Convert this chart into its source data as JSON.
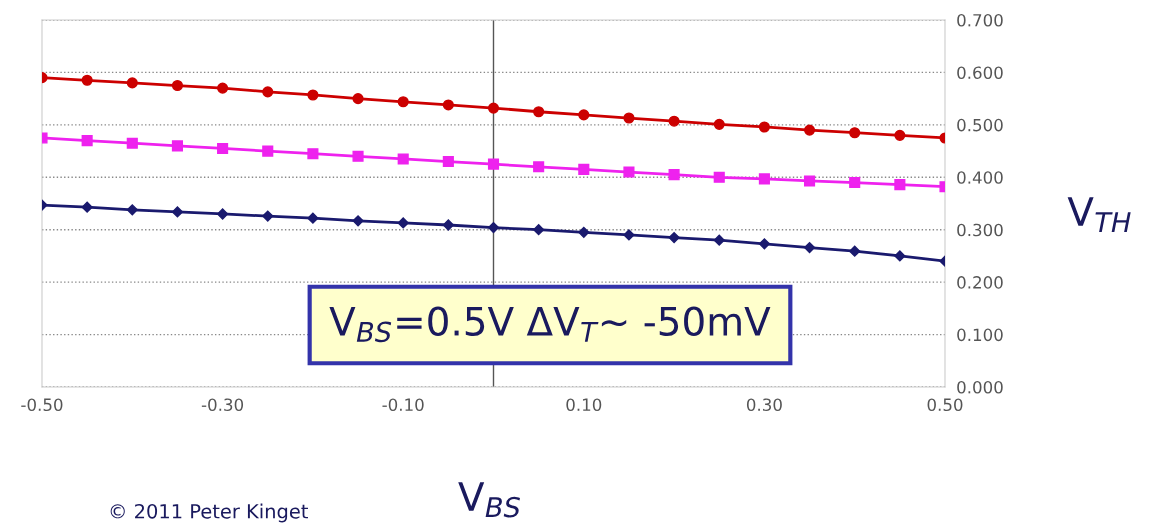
{
  "chart_data": {
    "type": "line",
    "x": [
      -0.5,
      -0.45,
      -0.4,
      -0.35,
      -0.3,
      -0.25,
      -0.2,
      -0.15,
      -0.1,
      -0.05,
      0,
      0.05,
      0.1,
      0.15,
      0.2,
      0.25,
      0.3,
      0.35,
      0.4,
      0.45,
      0.5
    ],
    "series": [
      {
        "color": "#cc0000",
        "marker": "circle",
        "values": [
          0.59,
          0.585,
          0.58,
          0.575,
          0.57,
          0.563,
          0.557,
          0.55,
          0.544,
          0.538,
          0.532,
          0.525,
          0.519,
          0.513,
          0.507,
          0.501,
          0.496,
          0.49,
          0.485,
          0.48,
          0.475
        ]
      },
      {
        "color": "#ee22ee",
        "marker": "square",
        "values": [
          0.475,
          0.47,
          0.465,
          0.46,
          0.455,
          0.45,
          0.445,
          0.44,
          0.435,
          0.43,
          0.425,
          0.42,
          0.415,
          0.41,
          0.405,
          0.4,
          0.397,
          0.393,
          0.39,
          0.386,
          0.382
        ]
      },
      {
        "color": "#1a1a6e",
        "marker": "diamond",
        "values": [
          0.347,
          0.343,
          0.338,
          0.334,
          0.33,
          0.326,
          0.322,
          0.317,
          0.313,
          0.309,
          0.304,
          0.3,
          0.295,
          0.29,
          0.285,
          0.28,
          0.273,
          0.266,
          0.259,
          0.25,
          0.24
        ]
      }
    ],
    "xlim": [
      -0.5,
      0.5
    ],
    "xticks": [
      {
        "value": -0.5,
        "label": "-0.50"
      },
      {
        "value": -0.3,
        "label": "-0.30"
      },
      {
        "value": -0.1,
        "label": "-0.10"
      },
      {
        "value": 0.1,
        "label": "0.10"
      },
      {
        "value": 0.3,
        "label": "0.30"
      },
      {
        "value": 0.5,
        "label": "0.50"
      }
    ],
    "ylim": [
      0,
      0.7
    ],
    "yticks": [
      {
        "value": 0,
        "label": "0.000"
      },
      {
        "value": 0.1,
        "label": "0.100"
      },
      {
        "value": 0.2,
        "label": "0.200"
      },
      {
        "value": 0.3,
        "label": "0.300"
      },
      {
        "value": 0.4,
        "label": "0.400"
      },
      {
        "value": 0.5,
        "label": "0.500"
      },
      {
        "value": 0.6,
        "label": "0.600"
      },
      {
        "value": 0.7,
        "label": "0.700"
      }
    ],
    "ylabel": "V$_{TH}$",
    "xlabel": "V$_{BS}$",
    "grid": "y",
    "ref_lines": [
      {
        "axis": "x",
        "value": 0,
        "label": null,
        "color": "#555555",
        "line_style": "solid"
      }
    ],
    "annotations": [
      "V$_{BS}$=0.5V ΔV$_{T}$~ -50mV",
      "© 2011 Peter Kinget"
    ]
  }
}
